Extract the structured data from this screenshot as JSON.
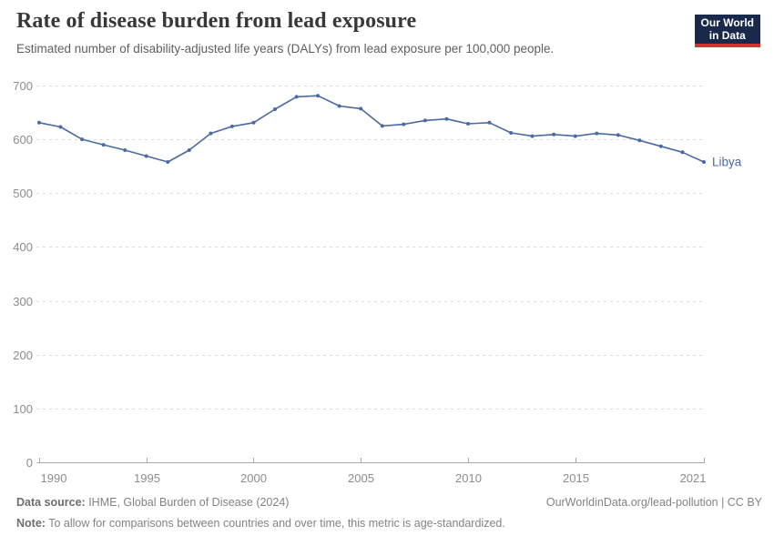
{
  "header": {
    "title": "Rate of disease burden from lead exposure",
    "subtitle": "Estimated number of disability-adjusted life years (DALYs) from lead exposure per 100,000 people.",
    "logo_line1": "Our World",
    "logo_line2": "in Data"
  },
  "chart_data": {
    "type": "line",
    "title": "Rate of disease burden from lead exposure",
    "xlabel": "",
    "ylabel": "",
    "x": [
      1990,
      1991,
      1992,
      1993,
      1994,
      1995,
      1996,
      1997,
      1998,
      1999,
      2000,
      2001,
      2002,
      2003,
      2004,
      2005,
      2006,
      2007,
      2008,
      2009,
      2010,
      2011,
      2012,
      2013,
      2014,
      2015,
      2016,
      2017,
      2018,
      2019,
      2020,
      2021
    ],
    "series": [
      {
        "name": "Libya",
        "values": [
          631,
          623,
          600,
          590,
          580,
          569,
          558,
          580,
          611,
          624,
          631,
          656,
          679,
          681,
          662,
          657,
          625,
          628,
          635,
          638,
          629,
          631,
          612,
          606,
          609,
          606,
          611,
          608,
          598,
          587,
          576,
          558
        ]
      }
    ],
    "xlim": [
      1990,
      2021
    ],
    "ylim": [
      0,
      700
    ],
    "xticks": [
      1990,
      1995,
      2000,
      2005,
      2010,
      2015,
      2021
    ],
    "yticks": [
      0,
      100,
      200,
      300,
      400,
      500,
      600,
      700
    ],
    "grid": "horizontal-dashed",
    "legend_position": "end-of-line-label",
    "entity_label": "Libya"
  },
  "colors": {
    "line": "#4b6aa4",
    "grid": "#dcdcdc",
    "axis": "#a8a8a8",
    "tick_text": "#8c8c8c",
    "logo_navy": "#18294b",
    "logo_red": "#d0342c"
  },
  "footer": {
    "datasource_label": "Data source:",
    "datasource_text": " IHME, Global Burden of Disease (2024)",
    "right_text": "OurWorldinData.org/lead-pollution | CC BY",
    "note_label": "Note:",
    "note_text": " To allow for comparisons between countries and over time, this metric is age-standardized."
  }
}
